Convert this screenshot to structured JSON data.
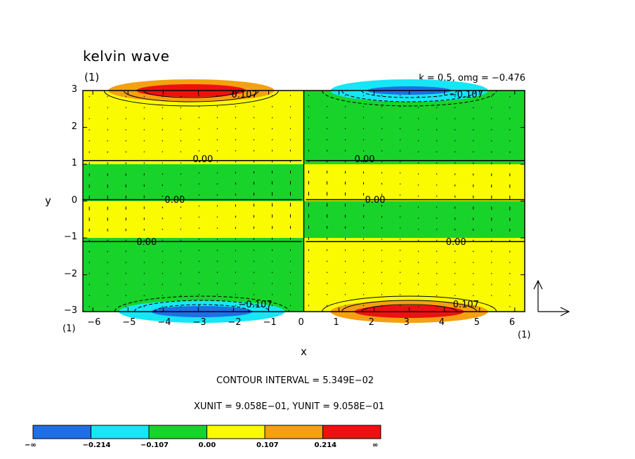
{
  "chart_data": {
    "type": "contour",
    "title": "kelvin wave",
    "panel_label": "(1)",
    "parameters_text": "k = 0.5, omg = −0.476",
    "xlabel": "x",
    "ylabel": "y",
    "xlim": [
      -6.2832,
      6.2832
    ],
    "ylim": [
      -3,
      3
    ],
    "x_ticks": [
      -6,
      -5,
      -4,
      -3,
      -2,
      -1,
      0,
      1,
      2,
      3,
      4,
      5,
      6
    ],
    "x_tick_labels": [
      "−6",
      "−5",
      "−4",
      "−3",
      "−2",
      "−1",
      "0",
      "1",
      "2",
      "3",
      "4",
      "5",
      "6"
    ],
    "y_ticks": [
      3,
      2,
      1,
      0,
      -1,
      -2,
      -3
    ],
    "y_tick_labels": [
      "3",
      "2",
      "1",
      "0",
      "−1",
      "−2",
      "−3"
    ],
    "x_corner_label": "(1)",
    "y_corner_label": "(1)",
    "contour_interval_text": "CONTOUR INTERVAL = 5.349E−02",
    "units_text": "XUNIT = 9.058E−01, YUNIT = 9.058E−01",
    "contour_labels": [
      {
        "text": "0.107",
        "x": -1.7,
        "y": 2.85
      },
      {
        "text": "−0.107",
        "x": 4.5,
        "y": 2.85
      },
      {
        "text": "0.00",
        "x": -2.8,
        "y": 1.1
      },
      {
        "text": "0.00",
        "x": 1.8,
        "y": 1.1
      },
      {
        "text": "0.00",
        "x": -3.6,
        "y": 0.0
      },
      {
        "text": "0.00",
        "x": 2.1,
        "y": 0.0
      },
      {
        "text": "0.00",
        "x": -4.4,
        "y": -1.15
      },
      {
        "text": "0.00",
        "x": 4.4,
        "y": -1.15
      },
      {
        "text": "−0.107",
        "x": -1.5,
        "y": -2.85
      },
      {
        "text": "0.107",
        "x": 4.6,
        "y": -2.85
      }
    ],
    "colorbar": {
      "levels": [
        "−∞",
        "−0.214",
        "−0.107",
        "0.00",
        "0.107",
        "0.214",
        "∞"
      ],
      "colors": [
        "#1e6ee6",
        "#16e6f5",
        "#18d42a",
        "#fafa00",
        "#f5a011",
        "#ee1111"
      ]
    }
  }
}
